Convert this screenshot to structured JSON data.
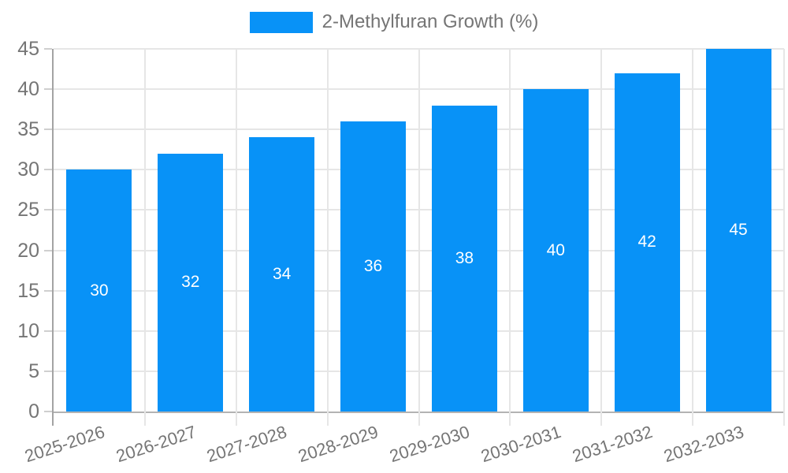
{
  "legend": {
    "label": "2-Methylfuran Growth (%)"
  },
  "chart_data": {
    "type": "bar",
    "title": "2-Methylfuran Growth (%)",
    "categories": [
      "2025-2026",
      "2026-2027",
      "2027-2028",
      "2028-2029",
      "2029-2030",
      "2030-2031",
      "2031-2032",
      "2032-2033"
    ],
    "values": [
      30,
      32,
      34,
      36,
      38,
      40,
      42,
      45
    ],
    "bar_value_labels": [
      "30",
      "32",
      "34",
      "36",
      "38",
      "40",
      "42",
      "45"
    ],
    "xlabel": "",
    "ylabel": "",
    "ylim": [
      0,
      45
    ],
    "ytick_step": 5,
    "yticks": [
      0,
      5,
      10,
      15,
      20,
      25,
      30,
      35,
      40,
      45
    ],
    "grid": true,
    "legend_position": "top-center",
    "x_label_rotation_deg": -18,
    "colors": {
      "bar": "#0892F7",
      "grid": "#e6e6e6",
      "axis_line": "#a3a3a3",
      "tick": "#cfcfcf",
      "axis_text": "#757575",
      "bar_label_text": "#ffffff",
      "background": "#ffffff"
    }
  }
}
